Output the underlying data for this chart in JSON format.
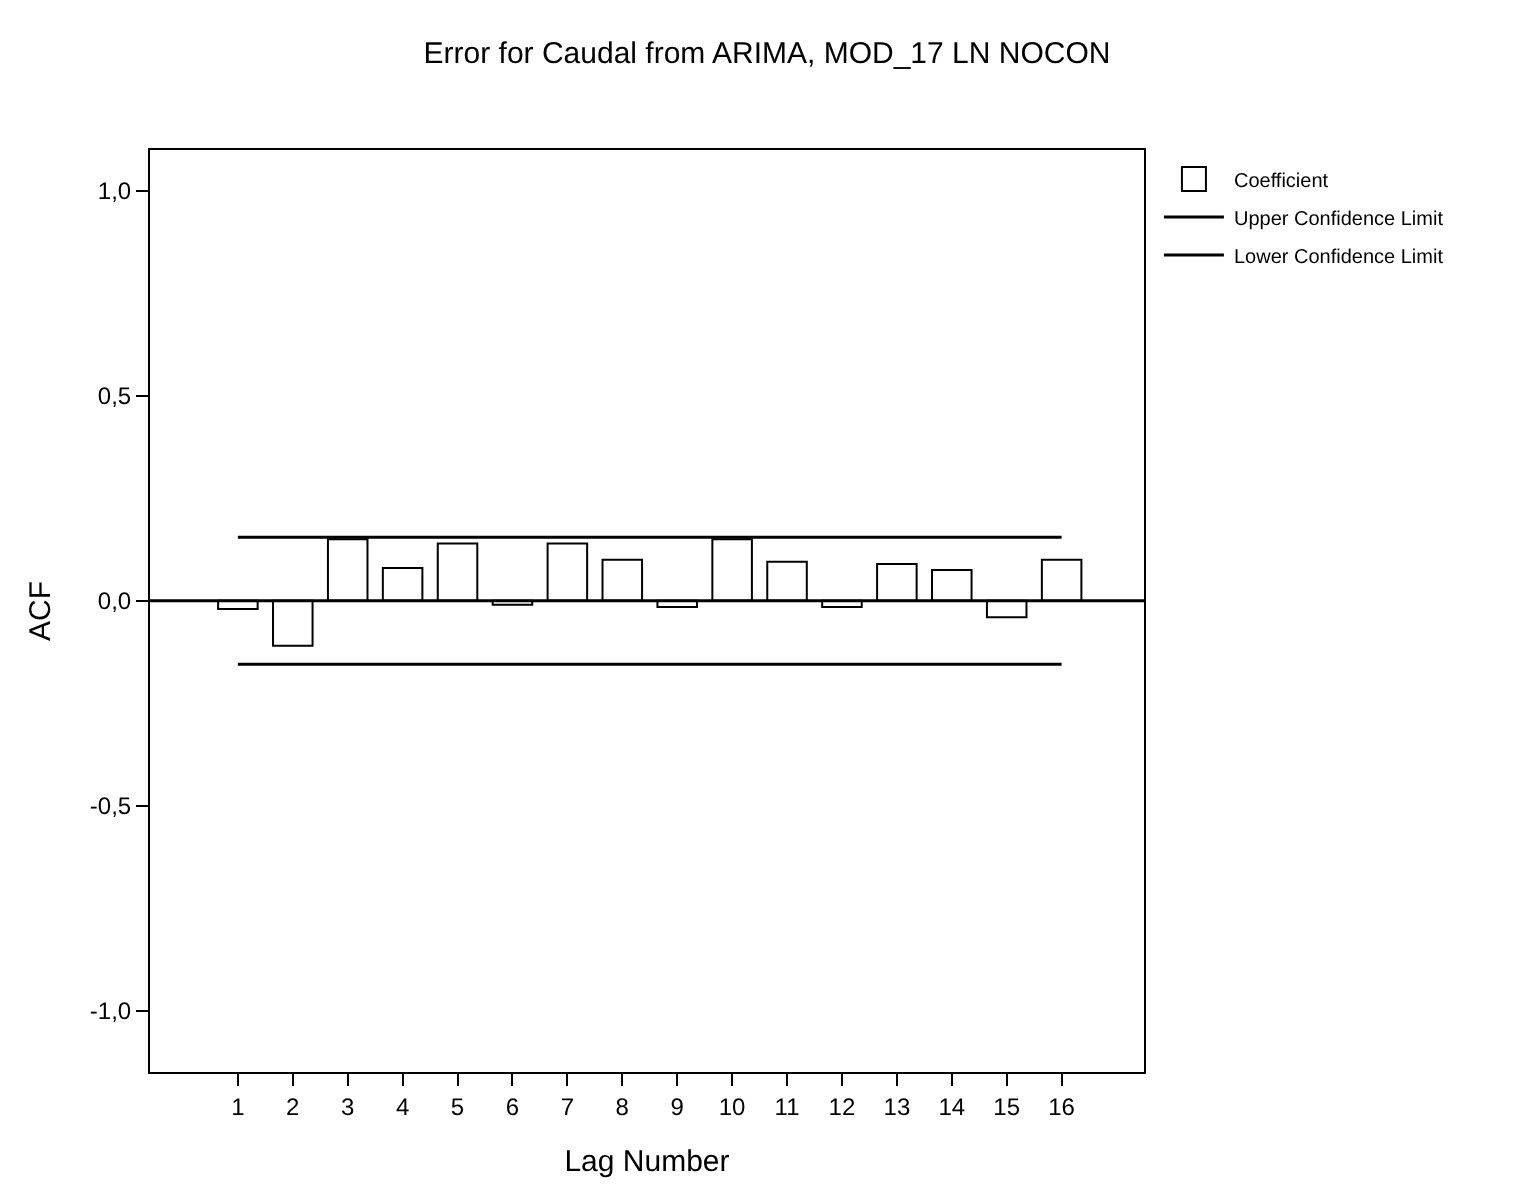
{
  "chart_data": {
    "type": "bar",
    "title": "Error for Caudal from ARIMA, MOD_17 LN NOCON",
    "xlabel": "Lag Number",
    "ylabel": "ACF",
    "x": [
      1,
      2,
      3,
      4,
      5,
      6,
      7,
      8,
      9,
      10,
      11,
      12,
      13,
      14,
      15,
      16
    ],
    "series": [
      {
        "name": "Coefficient",
        "color": "#ffffff",
        "values": [
          -0.02,
          -0.11,
          0.15,
          0.08,
          0.14,
          -0.01,
          0.14,
          0.1,
          -0.015,
          0.15,
          0.095,
          -0.015,
          0.09,
          0.075,
          -0.04,
          0.1
        ]
      },
      {
        "name": "Upper Confidence Limit",
        "type": "line",
        "color": "#000000",
        "values": [
          0.155,
          0.155,
          0.155,
          0.155,
          0.155,
          0.155,
          0.155,
          0.155,
          0.155,
          0.155,
          0.155,
          0.155,
          0.155,
          0.155,
          0.155,
          0.155
        ]
      },
      {
        "name": "Lower Confidence Limit",
        "type": "line",
        "color": "#000000",
        "values": [
          -0.155,
          -0.155,
          -0.155,
          -0.155,
          -0.155,
          -0.155,
          -0.155,
          -0.155,
          -0.155,
          -0.155,
          -0.155,
          -0.155,
          -0.155,
          -0.155,
          -0.155,
          -0.155
        ]
      }
    ],
    "ref_lines": [
      {
        "axis": "y",
        "value": 0,
        "color": "#000000"
      }
    ],
    "xlim": [
      -0.6,
      17.5
    ],
    "xticks": [
      1,
      2,
      3,
      4,
      5,
      6,
      7,
      8,
      9,
      10,
      11,
      12,
      13,
      14,
      15,
      16
    ],
    "ylim": [
      -1.15,
      1.1
    ],
    "yticks": [
      {
        "value": -1.0,
        "label": "-1,0"
      },
      {
        "value": -0.5,
        "label": "-0,5"
      },
      {
        "value": 0.0,
        "label": "0,0"
      },
      {
        "value": 0.5,
        "label": "0,5"
      },
      {
        "value": 1.0,
        "label": "1,0"
      }
    ],
    "legend": "top right",
    "marker": "none"
  }
}
